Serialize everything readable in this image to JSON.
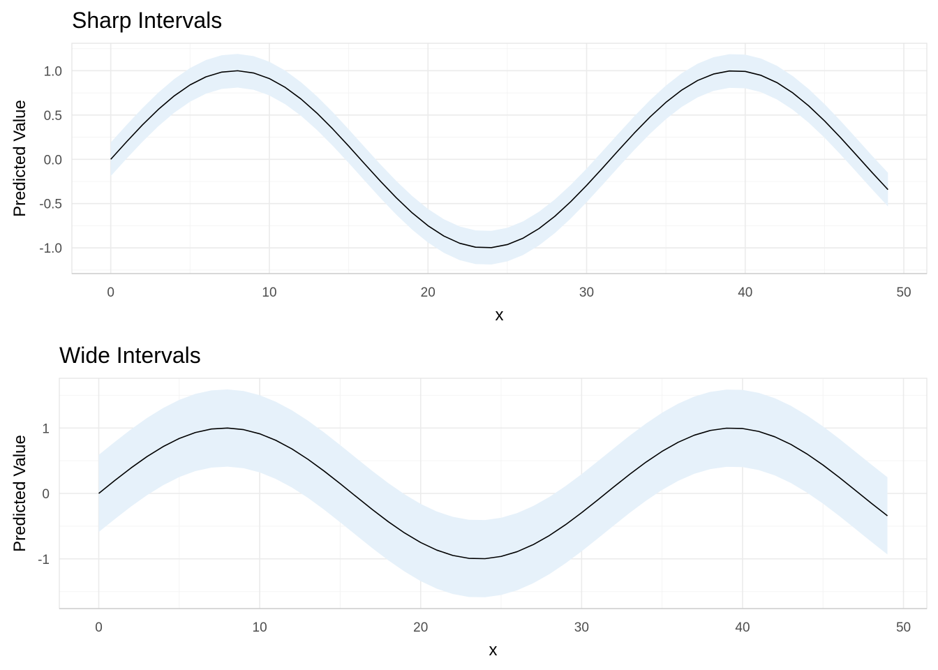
{
  "chart_data": [
    {
      "type": "area",
      "title": "Sharp Intervals",
      "xlabel": "x",
      "ylabel": "Predicted Value",
      "xlim": [
        -2.45,
        51.45
      ],
      "ylim": [
        -1.29,
        1.31
      ],
      "x_ticks": [
        0,
        10,
        20,
        30,
        40,
        50
      ],
      "x_tick_labels": [
        "0",
        "10",
        "20",
        "30",
        "40",
        "50"
      ],
      "x_minor_ticks": [
        5,
        15,
        25,
        35,
        45
      ],
      "y_ticks": [
        -1.0,
        -0.5,
        0.0,
        0.5,
        1.0
      ],
      "y_tick_labels": [
        "-1.0",
        "-0.5",
        "0.0",
        "0.5",
        "1.0"
      ],
      "y_minor_ticks": [
        -1.25,
        -0.75,
        -0.25,
        0.25,
        0.75,
        1.25
      ],
      "grid": true,
      "legend": "none",
      "series": [
        {
          "function": "sin(2*pi*x/31.5)",
          "x_start": 0,
          "x_end": 49,
          "x_step": 1,
          "interval_halfwidth": 0.19
        }
      ]
    },
    {
      "type": "area",
      "title": "Wide Intervals",
      "xlabel": "x",
      "ylabel": "Predicted Value",
      "xlim": [
        -2.45,
        51.45
      ],
      "ylim": [
        -1.76,
        1.76
      ],
      "x_ticks": [
        0,
        10,
        20,
        30,
        40,
        50
      ],
      "x_tick_labels": [
        "0",
        "10",
        "20",
        "30",
        "40",
        "50"
      ],
      "x_minor_ticks": [
        5,
        15,
        25,
        35,
        45
      ],
      "y_ticks": [
        -1,
        0,
        1
      ],
      "y_tick_labels": [
        "-1",
        "0",
        "1"
      ],
      "y_minor_ticks": [
        -1.5,
        -0.5,
        0.5,
        1.5
      ],
      "grid": true,
      "legend": "none",
      "series": [
        {
          "function": "sin(2*pi*x/31.5)",
          "x_start": 0,
          "x_end": 49,
          "x_step": 1,
          "interval_halfwidth": 0.59
        }
      ]
    }
  ],
  "colors": {
    "ribbon": "#e6f1fa",
    "line": "#000000"
  }
}
